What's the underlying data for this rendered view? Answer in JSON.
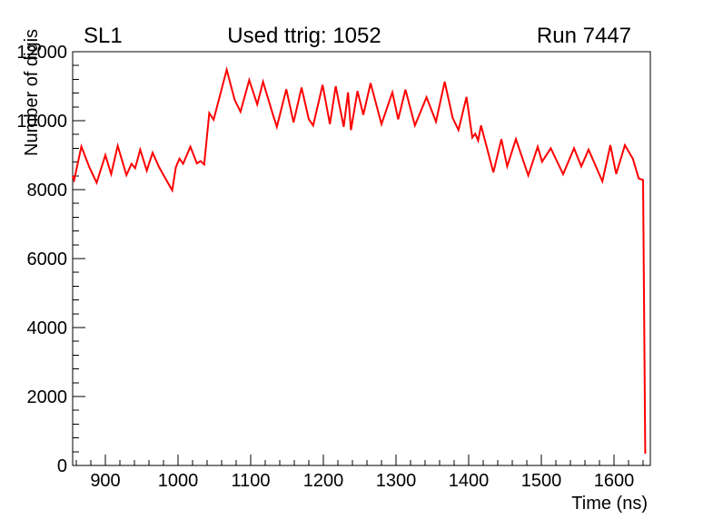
{
  "titles": {
    "left": "SL1",
    "center": "Used ttrig: 1052",
    "right": "Run 7447"
  },
  "colors": {
    "line": "#ff0000",
    "axis": "#000000",
    "background": "#ffffff"
  },
  "chart_data": {
    "type": "line",
    "title": "Used ttrig: 1052",
    "subtitle_left": "SL1",
    "subtitle_right": "Run 7447",
    "xlabel": "Time (ns)",
    "ylabel": "Number of digis",
    "xlim": [
      855,
      1650
    ],
    "ylim": [
      0,
      12000
    ],
    "grid": false,
    "legend": "none",
    "x_major_ticks": [
      900,
      1000,
      1100,
      1200,
      1300,
      1400,
      1500,
      1600
    ],
    "x_minor_step": 20,
    "y_major_ticks": [
      0,
      2000,
      4000,
      6000,
      8000,
      10000,
      12000
    ],
    "y_minor_step": 400,
    "series": [
      {
        "name": "number-of-digis-vs-time",
        "color": "#ff0000",
        "x": [
          855,
          857,
          867,
          878,
          888,
          900,
          908,
          917,
          929,
          936,
          941,
          948,
          957,
          965,
          974,
          982,
          992,
          997,
          1002,
          1007,
          1017,
          1026,
          1031,
          1036,
          1043,
          1049,
          1067,
          1078,
          1086,
          1098,
          1109,
          1117,
          1131,
          1136,
          1149,
          1159,
          1170,
          1180,
          1186,
          1199,
          1209,
          1217,
          1228,
          1234,
          1238,
          1247,
          1255,
          1265,
          1280,
          1295,
          1303,
          1313,
          1326,
          1342,
          1355,
          1367,
          1378,
          1386,
          1397,
          1405,
          1409,
          1413,
          1417,
          1434,
          1445,
          1453,
          1465,
          1482,
          1495,
          1501,
          1513,
          1530,
          1545,
          1555,
          1565,
          1584,
          1595,
          1603,
          1615,
          1626,
          1634,
          1640,
          1643
        ],
        "y": [
          8400,
          8280,
          9250,
          8650,
          8200,
          9000,
          8450,
          9270,
          8420,
          8750,
          8620,
          9160,
          8550,
          9070,
          8650,
          8350,
          7980,
          8650,
          8900,
          8750,
          9245,
          8760,
          8830,
          8730,
          10220,
          10030,
          11480,
          10600,
          10260,
          11180,
          10470,
          11130,
          10150,
          9820,
          10910,
          9950,
          10960,
          10040,
          9860,
          11040,
          9900,
          11000,
          9820,
          10820,
          9730,
          10860,
          10170,
          11090,
          9900,
          10820,
          10040,
          10900,
          9860,
          10680,
          9970,
          11130,
          10080,
          9730,
          10690,
          9510,
          9620,
          9420,
          9860,
          8500,
          9465,
          8675,
          9465,
          8410,
          9245,
          8810,
          9200,
          8450,
          9200,
          8675,
          9160,
          8240,
          9290,
          8456,
          9290,
          8895,
          8324,
          8281,
          340
        ]
      }
    ]
  }
}
